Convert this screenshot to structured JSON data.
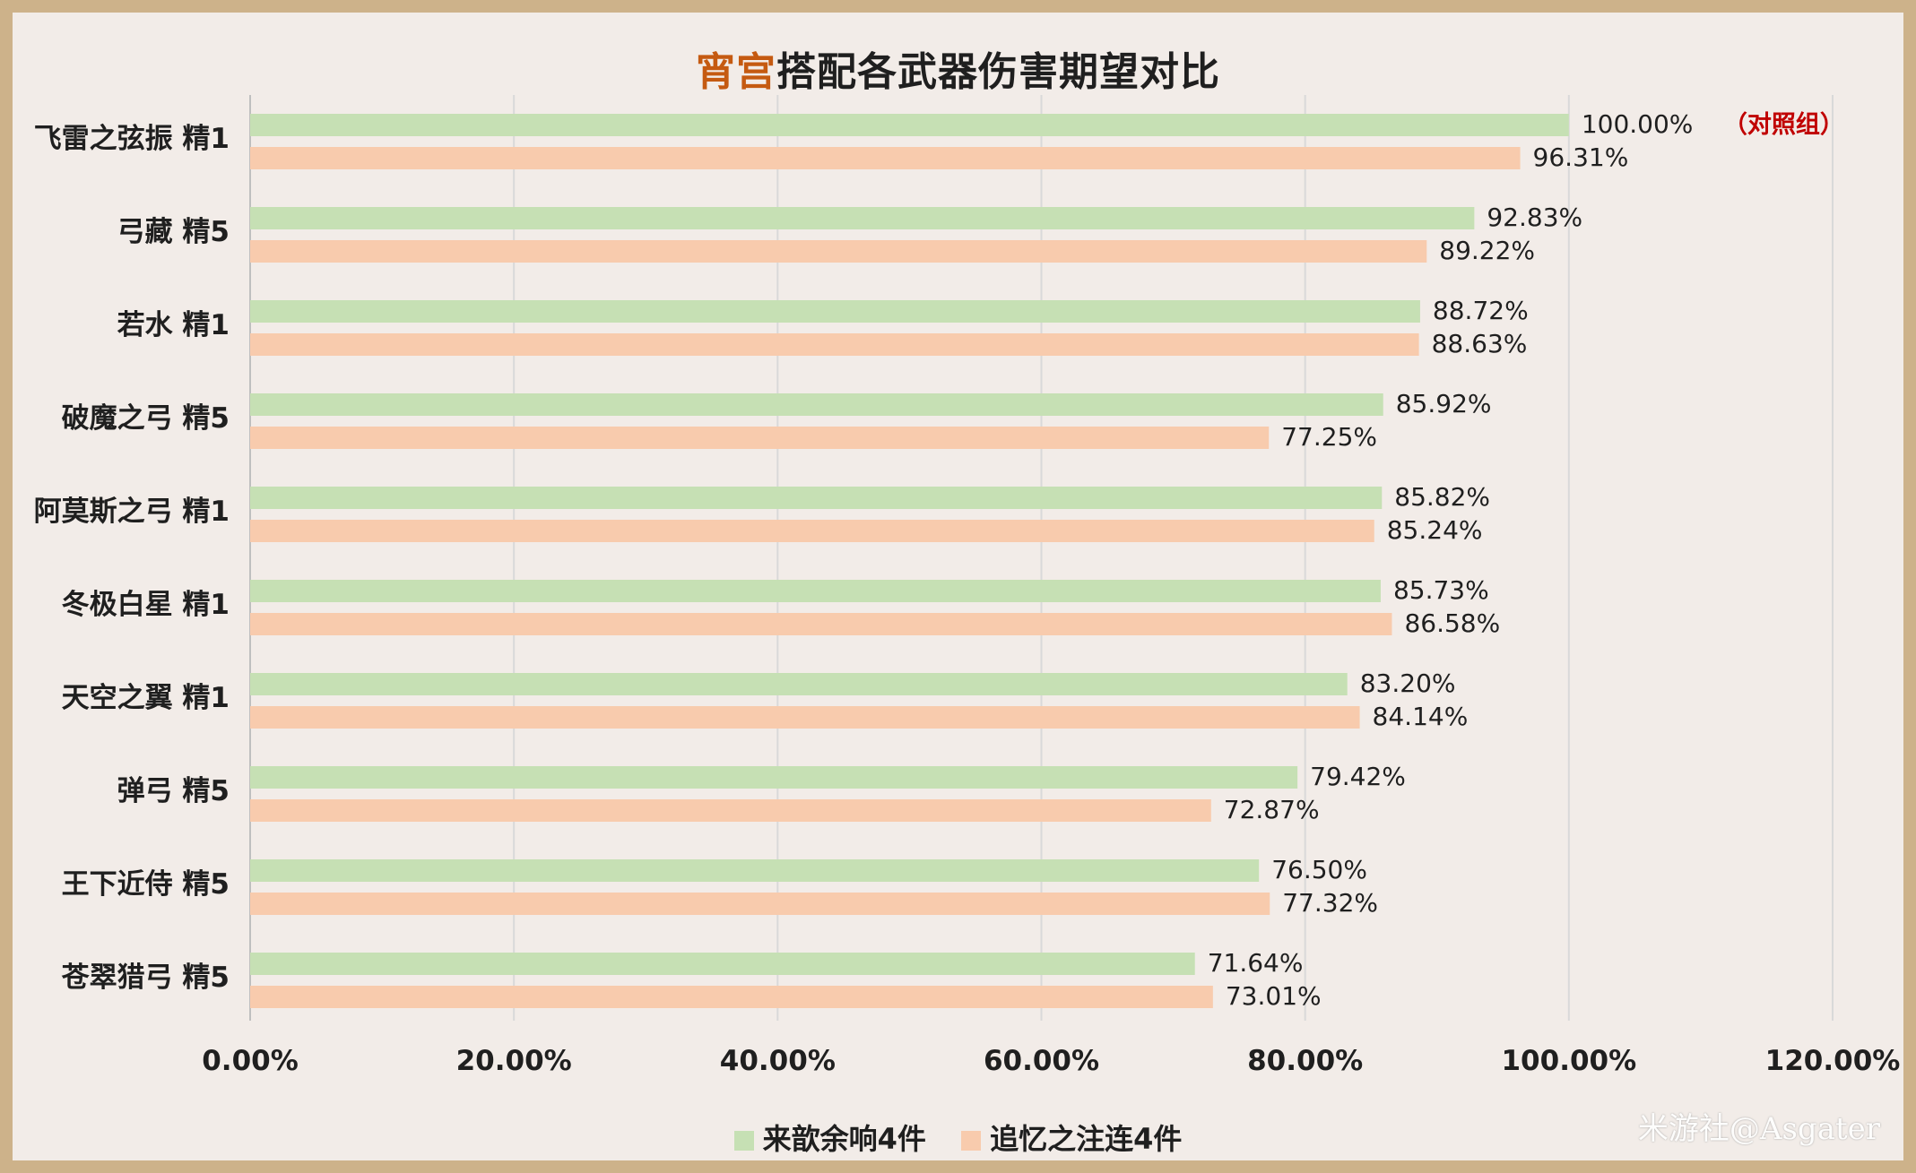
{
  "chart_data": {
    "type": "bar",
    "orientation": "horizontal",
    "title_highlight": "宵宫",
    "title_rest": "搭配各武器伤害期望对比",
    "categories": [
      "飞雷之弦振 精1",
      "弓藏 精5",
      "若水 精1",
      "破魔之弓 精5",
      "阿莫斯之弓 精1",
      "冬极白星 精1",
      "天空之翼 精1",
      "弹弓 精5",
      "王下近侍 精5",
      "苍翠猎弓 精5"
    ],
    "series": [
      {
        "name": "来歆余响4件",
        "color": "#c6e0b4",
        "values": [
          100.0,
          92.83,
          88.72,
          85.92,
          85.82,
          85.73,
          83.2,
          79.42,
          76.5,
          71.64
        ]
      },
      {
        "name": "追忆之注连4件",
        "color": "#f8cbad",
        "values": [
          96.31,
          89.22,
          88.63,
          77.25,
          85.24,
          86.58,
          84.14,
          72.87,
          77.32,
          73.01
        ]
      }
    ],
    "xlim": [
      0,
      120
    ],
    "xticks": [
      "0.00%",
      "20.00%",
      "40.00%",
      "60.00%",
      "80.00%",
      "100.00%",
      "120.00%"
    ],
    "annotation": "（对照组）",
    "annotation_color": "#c00000",
    "grid": true,
    "legend_position": "bottom"
  },
  "watermark": "米游社@Asgater"
}
